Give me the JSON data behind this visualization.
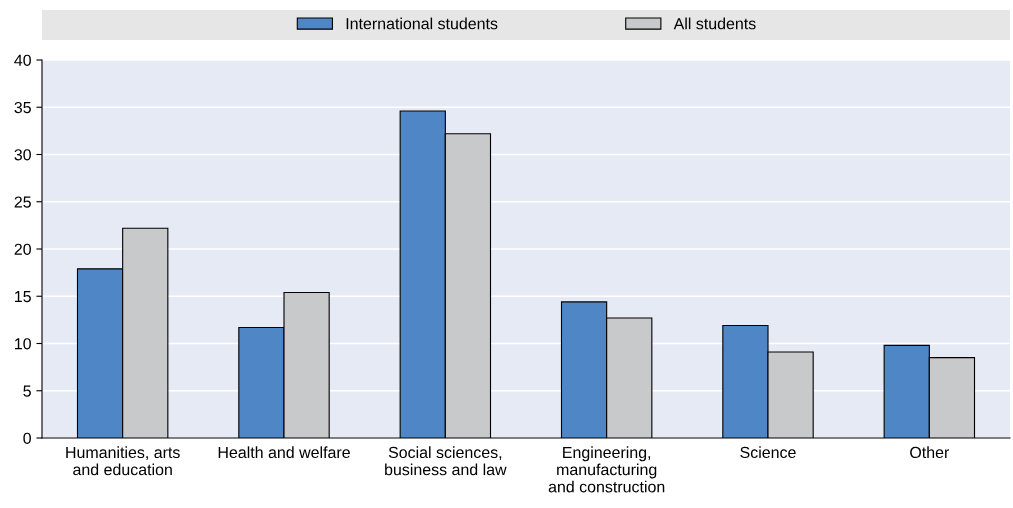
{
  "chart_data": {
    "type": "bar",
    "categories": [
      "Humanities, arts\nand education",
      "Health and welfare",
      "Social sciences,\nbusiness and law",
      "Engineering,\nmanufacturing\nand construction",
      "Science",
      "Other"
    ],
    "series": [
      {
        "name": "International students",
        "color": "#4e86c6",
        "values": [
          17.9,
          11.7,
          34.6,
          14.4,
          11.9,
          9.8
        ]
      },
      {
        "name": "All students",
        "color": "#c8c9cb",
        "values": [
          22.2,
          15.4,
          32.2,
          12.7,
          9.1,
          8.5
        ]
      }
    ],
    "ylim": [
      0,
      40
    ],
    "yticks": [
      0,
      5,
      10,
      15,
      20,
      25,
      30,
      35,
      40
    ],
    "grid": "y",
    "legend": "top"
  }
}
